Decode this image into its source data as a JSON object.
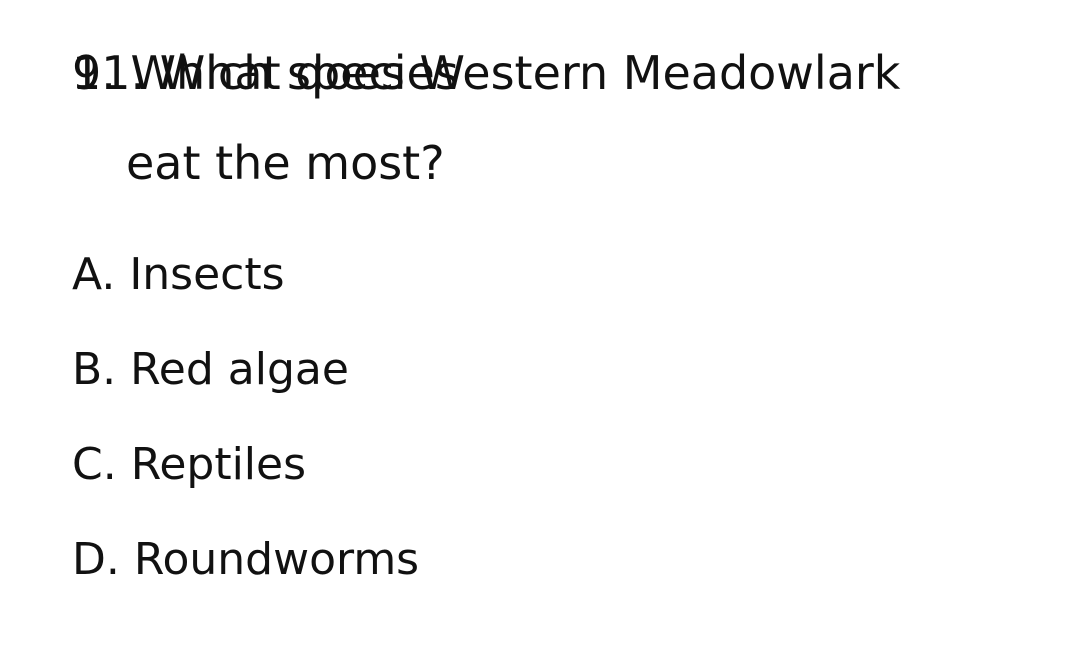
{
  "question": {
    "overlay_text": "9. Which species",
    "number": "11.",
    "line1": "What does Western Meadowlark",
    "line2": "eat the most?"
  },
  "options": [
    {
      "letter": "A.",
      "text": "Insects"
    },
    {
      "letter": "B.",
      "text": "Red algae"
    },
    {
      "letter": "C.",
      "text": "Reptiles"
    },
    {
      "letter": "D.",
      "text": "Roundworms"
    }
  ]
}
